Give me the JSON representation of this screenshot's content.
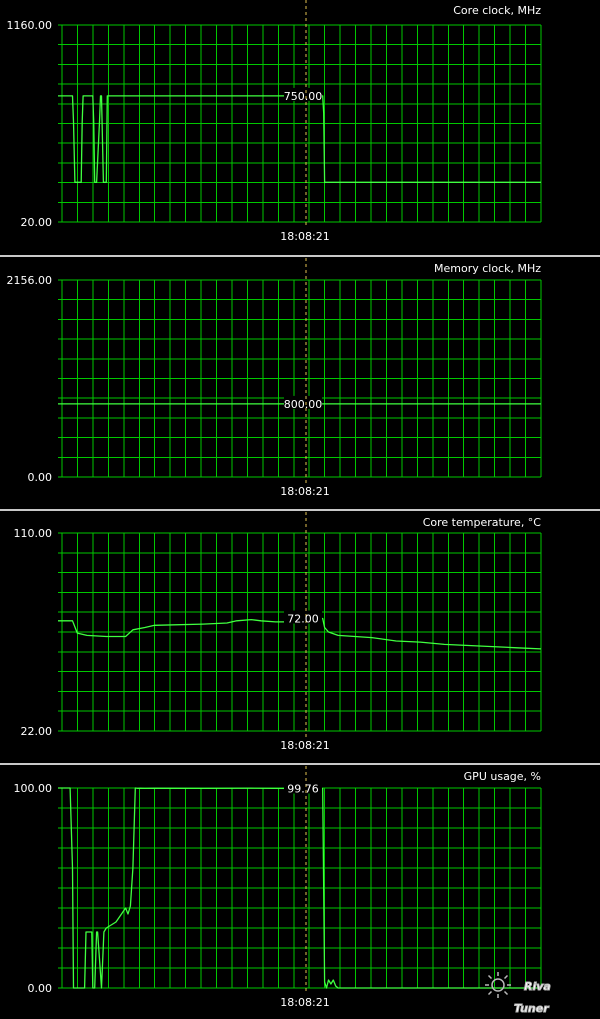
{
  "chart_data": [
    {
      "type": "line",
      "title": "Core clock, MHz",
      "ylim": [
        20,
        1160
      ],
      "ymax_label": "1160.00",
      "ymin_label": "20.00",
      "cursor_time": "18:08:21",
      "cursor_value_label": "750.00",
      "series": [
        {
          "x": [
            0,
            0.025,
            0.03,
            0.032,
            0.035,
            0.048,
            0.05,
            0.052,
            0.072,
            0.074,
            0.076,
            0.08,
            0.086,
            0.088,
            0.09,
            0.094,
            0.1,
            0.102,
            0.105,
            0.49,
            0.548,
            0.55,
            0.552,
            0.56,
            1.0
          ],
          "y": [
            750,
            750,
            750,
            600,
            250,
            250,
            600,
            750,
            750,
            600,
            250,
            250,
            600,
            750,
            750,
            250,
            250,
            750,
            750,
            750,
            750,
            650,
            250,
            250,
            250
          ]
        }
      ]
    },
    {
      "type": "line",
      "title": "Memory clock, MHz",
      "ylim": [
        0,
        2156
      ],
      "ymax_label": "2156.00",
      "ymin_label": "0.00",
      "cursor_time": "18:08:21",
      "cursor_value_label": "800.00",
      "series": [
        {
          "x": [
            0,
            1.0
          ],
          "y": [
            800,
            800
          ]
        }
      ]
    },
    {
      "type": "line",
      "title": "Core temperature, °C",
      "ylim": [
        22,
        110
      ],
      "ymax_label": "110.00",
      "ymin_label": "22.00",
      "cursor_time": "18:08:21",
      "cursor_value_label": "72.00",
      "series": [
        {
          "x": [
            0,
            0.03,
            0.04,
            0.06,
            0.1,
            0.14,
            0.155,
            0.18,
            0.2,
            0.3,
            0.35,
            0.37,
            0.4,
            0.42,
            0.45,
            0.48,
            0.49,
            0.548,
            0.552,
            0.56,
            0.58,
            0.65,
            0.7,
            0.75,
            0.8,
            0.85,
            0.9,
            0.95,
            1.0
          ],
          "y": [
            71,
            71,
            65.5,
            64.5,
            64,
            64,
            67,
            68,
            69,
            69.5,
            70,
            71,
            71.5,
            71,
            70.5,
            70.5,
            72,
            72,
            68,
            66,
            64.5,
            63.5,
            62,
            61.5,
            60.5,
            60,
            59.5,
            59,
            58.5
          ]
        }
      ]
    },
    {
      "type": "line",
      "title": "GPU usage, %",
      "ylim": [
        0,
        100
      ],
      "ymax_label": "100.00",
      "ymin_label": "0.00",
      "cursor_time": "18:08:21",
      "cursor_value_label": "99.76",
      "series": [
        {
          "x": [
            0,
            0.025,
            0.03,
            0.032,
            0.035,
            0.055,
            0.058,
            0.07,
            0.072,
            0.076,
            0.08,
            0.082,
            0.09,
            0.095,
            0.1,
            0.12,
            0.14,
            0.145,
            0.15,
            0.155,
            0.16,
            0.165,
            0.17,
            0.18,
            0.2,
            0.3,
            0.4,
            0.49,
            0.548,
            0.552,
            0.556,
            0.56,
            0.565,
            0.57,
            0.575,
            0.58,
            0.6,
            1.0
          ],
          "y": [
            100,
            100,
            60,
            0,
            0,
            0,
            28,
            28,
            0,
            0,
            28,
            28,
            0,
            28,
            30,
            33,
            40,
            37,
            41,
            60,
            100,
            99.8,
            99.9,
            99.8,
            99.9,
            99.8,
            99.9,
            99.76,
            99.76,
            3,
            0,
            4,
            2,
            4,
            1,
            0,
            0,
            0
          ]
        }
      ]
    }
  ],
  "watermark": {
    "line1": "Riva",
    "line2": "Tuner",
    "logo": "sun-gear-logo"
  },
  "colors": {
    "background": "#000000",
    "grid": "#00c800",
    "series": "#40ff40",
    "cursor": "#e0c050",
    "separator": "#c8c8c8",
    "text": "#ffffff"
  }
}
